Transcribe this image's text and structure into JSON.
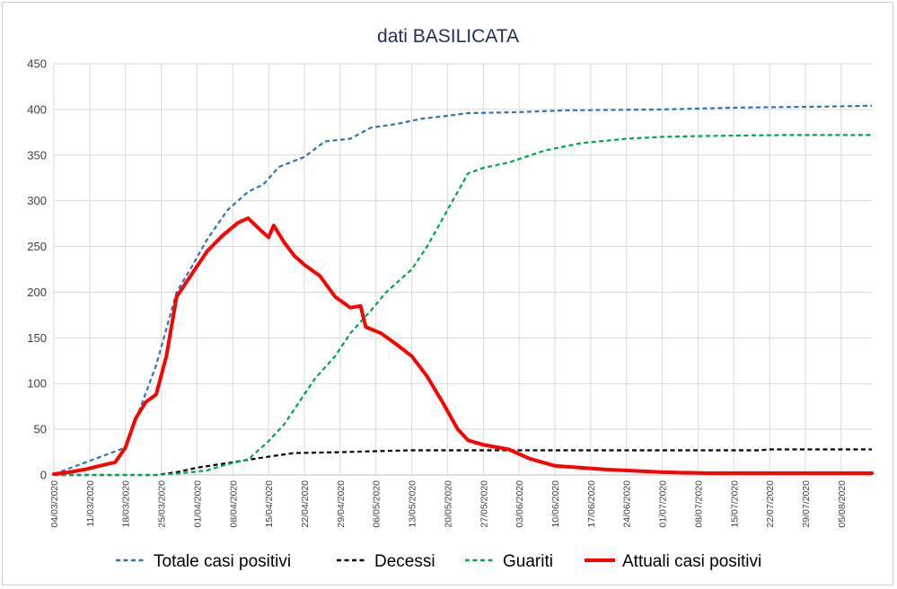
{
  "chart_data": {
    "type": "line",
    "title": "dati BASILICATA",
    "xlabel": "",
    "ylabel": "",
    "ylim": [
      0,
      450
    ],
    "yticks": [
      "0",
      "50",
      "100",
      "150",
      "200",
      "250",
      "300",
      "350",
      "400",
      "450"
    ],
    "grid": true,
    "legend_position": "bottom",
    "x_start": "04/03/2020",
    "x_end": "11/08/2020",
    "x_tick_labels": [
      "04/03/2020",
      "11/03/2020",
      "18/03/2020",
      "25/03/2020",
      "01/04/2020",
      "08/04/2020",
      "15/04/2020",
      "22/04/2020",
      "29/04/2020",
      "06/05/2020",
      "13/05/2020",
      "20/05/2020",
      "27/05/2020",
      "03/06/2020",
      "10/06/2020",
      "17/06/2020",
      "24/06/2020",
      "01/07/2020",
      "08/07/2020",
      "15/07/2020",
      "22/07/2020",
      "29/07/2020",
      "05/08/2020"
    ],
    "series": [
      {
        "name": "Totale casi positivi",
        "color": "#2e75b6",
        "style": "dashed",
        "points": [
          [
            "04/03/2020",
            1
          ],
          [
            "18/03/2020",
            30
          ],
          [
            "24/03/2020",
            120
          ],
          [
            "28/03/2020",
            200
          ],
          [
            "31/03/2020",
            228
          ],
          [
            "03/04/2020",
            258
          ],
          [
            "07/04/2020",
            290
          ],
          [
            "11/04/2020",
            310
          ],
          [
            "14/04/2020",
            318
          ],
          [
            "17/04/2020",
            337
          ],
          [
            "22/04/2020",
            348
          ],
          [
            "26/04/2020",
            365
          ],
          [
            "01/05/2020",
            368
          ],
          [
            "05/05/2020",
            380
          ],
          [
            "10/05/2020",
            384
          ],
          [
            "15/05/2020",
            390
          ],
          [
            "20/05/2020",
            393
          ],
          [
            "24/05/2020",
            396
          ],
          [
            "03/06/2020",
            397
          ],
          [
            "12/06/2020",
            399
          ],
          [
            "01/07/2020",
            400
          ],
          [
            "15/07/2020",
            402
          ],
          [
            "01/08/2020",
            403
          ],
          [
            "11/08/2020",
            404
          ]
        ]
      },
      {
        "name": "Decessi",
        "color": "#000000",
        "style": "dashed",
        "points": [
          [
            "04/03/2020",
            0
          ],
          [
            "24/03/2020",
            0
          ],
          [
            "28/03/2020",
            3
          ],
          [
            "01/04/2020",
            8
          ],
          [
            "08/04/2020",
            14
          ],
          [
            "15/04/2020",
            20
          ],
          [
            "20/04/2020",
            24
          ],
          [
            "29/04/2020",
            25
          ],
          [
            "06/05/2020",
            26
          ],
          [
            "13/05/2020",
            27
          ],
          [
            "20/05/2020",
            27
          ],
          [
            "27/05/2020",
            27
          ],
          [
            "10/06/2020",
            27
          ],
          [
            "20/07/2020",
            27
          ],
          [
            "22/07/2020",
            28
          ],
          [
            "11/08/2020",
            28
          ]
        ]
      },
      {
        "name": "Guariti",
        "color": "#00a550",
        "style": "dashed",
        "points": [
          [
            "04/03/2020",
            0
          ],
          [
            "24/03/2020",
            0
          ],
          [
            "29/03/2020",
            2
          ],
          [
            "03/04/2020",
            5
          ],
          [
            "07/04/2020",
            12
          ],
          [
            "11/04/2020",
            17
          ],
          [
            "15/04/2020",
            37
          ],
          [
            "18/04/2020",
            55
          ],
          [
            "21/04/2020",
            80
          ],
          [
            "24/04/2020",
            105
          ],
          [
            "28/04/2020",
            130
          ],
          [
            "01/05/2020",
            155
          ],
          [
            "05/05/2020",
            180
          ],
          [
            "08/05/2020",
            200
          ],
          [
            "13/05/2020",
            225
          ],
          [
            "16/05/2020",
            250
          ],
          [
            "21/05/2020",
            300
          ],
          [
            "24/05/2020",
            330
          ],
          [
            "27/05/2020",
            336
          ],
          [
            "01/06/2020",
            342
          ],
          [
            "08/06/2020",
            355
          ],
          [
            "15/06/2020",
            363
          ],
          [
            "24/06/2020",
            368
          ],
          [
            "01/07/2020",
            370
          ],
          [
            "10/07/2020",
            371
          ],
          [
            "25/07/2020",
            372
          ],
          [
            "11/08/2020",
            372
          ]
        ]
      },
      {
        "name": "Attuali casi positivi",
        "color": "#ff0000",
        "style": "solid",
        "points": [
          [
            "04/03/2020",
            1
          ],
          [
            "07/03/2020",
            3
          ],
          [
            "10/03/2020",
            6
          ],
          [
            "13/03/2020",
            10
          ],
          [
            "16/03/2020",
            14
          ],
          [
            "18/03/2020",
            30
          ],
          [
            "20/03/2020",
            62
          ],
          [
            "22/03/2020",
            80
          ],
          [
            "24/03/2020",
            88
          ],
          [
            "26/03/2020",
            130
          ],
          [
            "28/03/2020",
            195
          ],
          [
            "31/03/2020",
            220
          ],
          [
            "03/04/2020",
            245
          ],
          [
            "06/04/2020",
            262
          ],
          [
            "09/04/2020",
            276
          ],
          [
            "11/04/2020",
            281
          ],
          [
            "13/04/2020",
            270
          ],
          [
            "15/04/2020",
            260
          ],
          [
            "16/04/2020",
            273
          ],
          [
            "18/04/2020",
            255
          ],
          [
            "20/04/2020",
            240
          ],
          [
            "22/04/2020",
            230
          ],
          [
            "25/04/2020",
            218
          ],
          [
            "28/04/2020",
            195
          ],
          [
            "01/05/2020",
            183
          ],
          [
            "03/05/2020",
            185
          ],
          [
            "04/05/2020",
            162
          ],
          [
            "07/05/2020",
            155
          ],
          [
            "10/05/2020",
            143
          ],
          [
            "13/05/2020",
            130
          ],
          [
            "16/05/2020",
            108
          ],
          [
            "19/05/2020",
            80
          ],
          [
            "22/05/2020",
            50
          ],
          [
            "24/05/2020",
            38
          ],
          [
            "27/05/2020",
            33
          ],
          [
            "01/06/2020",
            28
          ],
          [
            "05/06/2020",
            18
          ],
          [
            "10/06/2020",
            10
          ],
          [
            "15/06/2020",
            8
          ],
          [
            "20/06/2020",
            6
          ],
          [
            "01/07/2020",
            3
          ],
          [
            "10/07/2020",
            2
          ],
          [
            "01/08/2020",
            2
          ],
          [
            "11/08/2020",
            2
          ]
        ]
      }
    ]
  }
}
